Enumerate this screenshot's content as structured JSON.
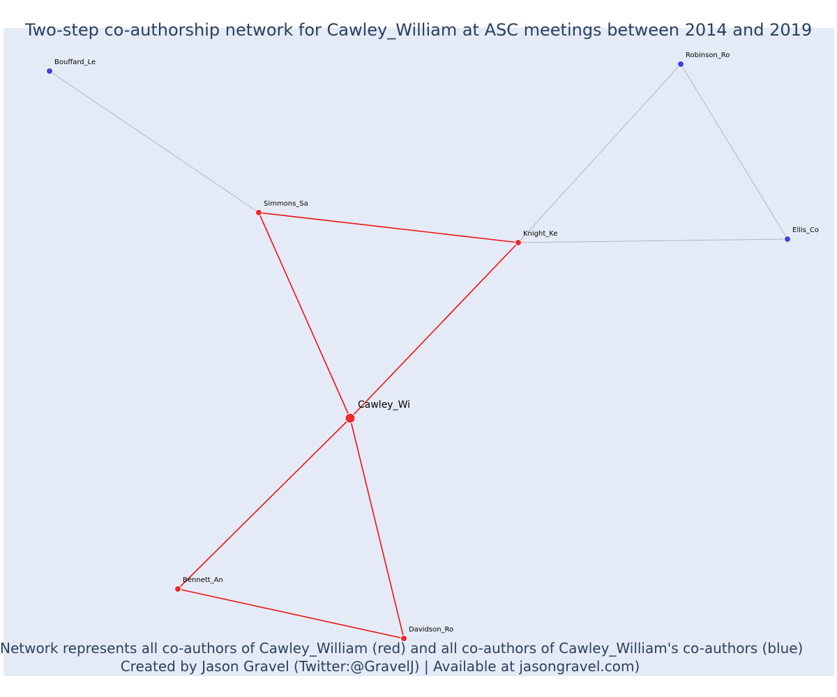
{
  "title": "Two-step co-authorship network for Cawley_William at ASC meetings between 2014 and 2019",
  "caption": {
    "line1": "Network represents all co-authors of Cawley_William (red) and all co-authors of Cawley_William's co-authors (blue)",
    "line2": "Created by Jason Gravel (Twitter:@GravelJ) | Available at jasongravel.com)"
  },
  "colors": {
    "background": "#e5ebf6",
    "first_degree": "#ee2a2a",
    "second_degree": "#3a44e8",
    "first_degree_edge": "#ee1111",
    "second_degree_edge": "#b0b4c8"
  },
  "nodes": [
    {
      "id": "Cawley_Wi",
      "label": "Cawley_Wi",
      "group": "focal"
    },
    {
      "id": "Simmons_Sa",
      "label": "Simmons_Sa",
      "group": "first"
    },
    {
      "id": "Knight_Ke",
      "label": "Knight_Ke",
      "group": "first"
    },
    {
      "id": "Bennett_An",
      "label": "Bennett_An",
      "group": "first"
    },
    {
      "id": "Davidson_Ro",
      "label": "Davidson_Ro",
      "group": "first"
    },
    {
      "id": "Bouffard_Le",
      "label": "Bouffard_Le",
      "group": "second"
    },
    {
      "id": "Robinson_Ro",
      "label": "Robinson_Ro",
      "group": "second"
    },
    {
      "id": "Ellis_Co",
      "label": "Ellis_Co",
      "group": "second"
    }
  ],
  "edges": [
    {
      "source": "Cawley_Wi",
      "target": "Simmons_Sa",
      "group": "first"
    },
    {
      "source": "Cawley_Wi",
      "target": "Knight_Ke",
      "group": "first"
    },
    {
      "source": "Cawley_Wi",
      "target": "Bennett_An",
      "group": "first"
    },
    {
      "source": "Cawley_Wi",
      "target": "Davidson_Ro",
      "group": "first"
    },
    {
      "source": "Simmons_Sa",
      "target": "Knight_Ke",
      "group": "first"
    },
    {
      "source": "Bennett_An",
      "target": "Davidson_Ro",
      "group": "first"
    },
    {
      "source": "Simmons_Sa",
      "target": "Bouffard_Le",
      "group": "second"
    },
    {
      "source": "Knight_Ke",
      "target": "Robinson_Ro",
      "group": "second"
    },
    {
      "source": "Knight_Ke",
      "target": "Ellis_Co",
      "group": "second"
    },
    {
      "source": "Robinson_Ro",
      "target": "Ellis_Co",
      "group": "second"
    }
  ]
}
